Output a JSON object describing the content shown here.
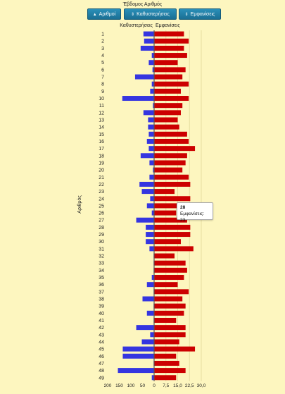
{
  "header": {
    "title": "Έβδομος Αριθμός",
    "buttons": [
      {
        "icon": "sort-up-icon",
        "icon_glyph": "▲",
        "label": "Αριθμοί"
      },
      {
        "icon": "sort-icon",
        "icon_glyph": "⇕",
        "label": "Καθυστερήσεις"
      },
      {
        "icon": "sort-icon",
        "icon_glyph": "⇕",
        "label": "Εμφανίσεις"
      }
    ]
  },
  "tooltip": {
    "title": "28",
    "text": "Εμφανίσεις: 23"
  },
  "chart_data": {
    "type": "bar",
    "orientation": "horizontal",
    "categories": [
      "1",
      "2",
      "3",
      "4",
      "5",
      "6",
      "7",
      "8",
      "9",
      "10",
      "11",
      "12",
      "13",
      "14",
      "15",
      "16",
      "17",
      "18",
      "19",
      "20",
      "21",
      "22",
      "23",
      "24",
      "25",
      "26",
      "27",
      "28",
      "29",
      "30",
      "31",
      "32",
      "33",
      "34",
      "35",
      "36",
      "37",
      "38",
      "39",
      "40",
      "41",
      "42",
      "43",
      "44",
      "45",
      "46",
      "47",
      "48",
      "49"
    ],
    "ylabel": "Αριθμός",
    "series": [
      {
        "name": "Καθυστερήσεις",
        "color": "#3535e0",
        "values": [
          46,
          43,
          58,
          10,
          23,
          7,
          82,
          10,
          17,
          137,
          5,
          46,
          26,
          26,
          23,
          31,
          23,
          58,
          20,
          5,
          20,
          63,
          53,
          17,
          31,
          10,
          77,
          36,
          36,
          36,
          20,
          2,
          2,
          2,
          10,
          31,
          2,
          50,
          2,
          31,
          2,
          77,
          17,
          53,
          135,
          135,
          2,
          156,
          10
        ]
      },
      {
        "name": "Εμφανίσεις",
        "color": "#cc0000",
        "values": [
          19,
          22,
          19,
          21,
          15,
          20,
          18,
          22,
          17,
          22,
          18,
          17,
          15,
          16,
          21,
          22,
          26,
          21,
          20,
          18,
          22,
          23,
          13,
          23,
          15,
          14,
          21,
          23,
          23,
          17,
          25,
          13,
          20,
          21,
          19,
          15,
          22,
          18,
          20,
          19,
          14,
          20,
          20,
          16,
          26,
          14,
          16,
          20,
          14
        ]
      }
    ],
    "xaxis_left": {
      "ticks": [
        "200",
        "150",
        "100",
        "50",
        "0"
      ],
      "range": [
        200,
        0
      ]
    },
    "xaxis_right": {
      "ticks": [
        "7,5",
        "15,0",
        "22,5",
        "30,0"
      ],
      "range": [
        0,
        30
      ]
    }
  }
}
